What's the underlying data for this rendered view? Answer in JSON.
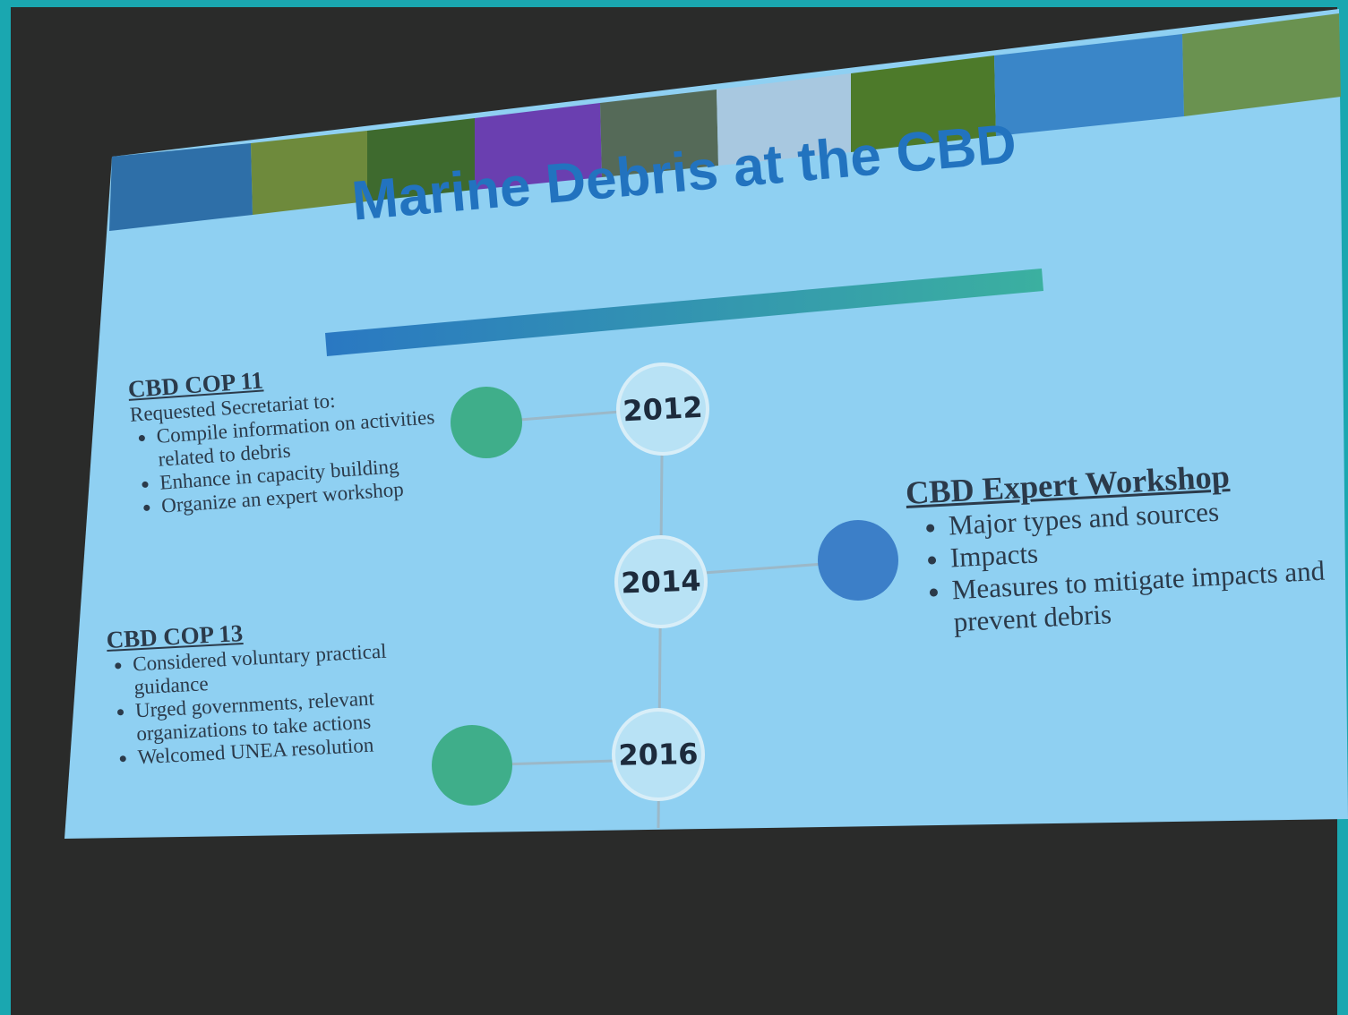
{
  "slide": {
    "title": "Marine Debris at the CBD",
    "timeline": [
      "2012",
      "2014",
      "2016"
    ],
    "sections": [
      {
        "heading": "CBD COP 11",
        "intro": "Requested Secretariat to:",
        "bullets": [
          "Compile information on activities related to debris",
          "Enhance in capacity building",
          "Organize an expert workshop"
        ]
      },
      {
        "heading": "CBD COP 13",
        "bullets": [
          "Considered voluntary practical guidance",
          "Urged governments, relevant organizations to take actions",
          "Welcomed UNEA resolution"
        ]
      },
      {
        "heading": "CBD Expert Workshop",
        "bullets": [
          "Major types and sources",
          "Impacts",
          "Measures to mitigate impacts and prevent debris"
        ]
      }
    ]
  }
}
